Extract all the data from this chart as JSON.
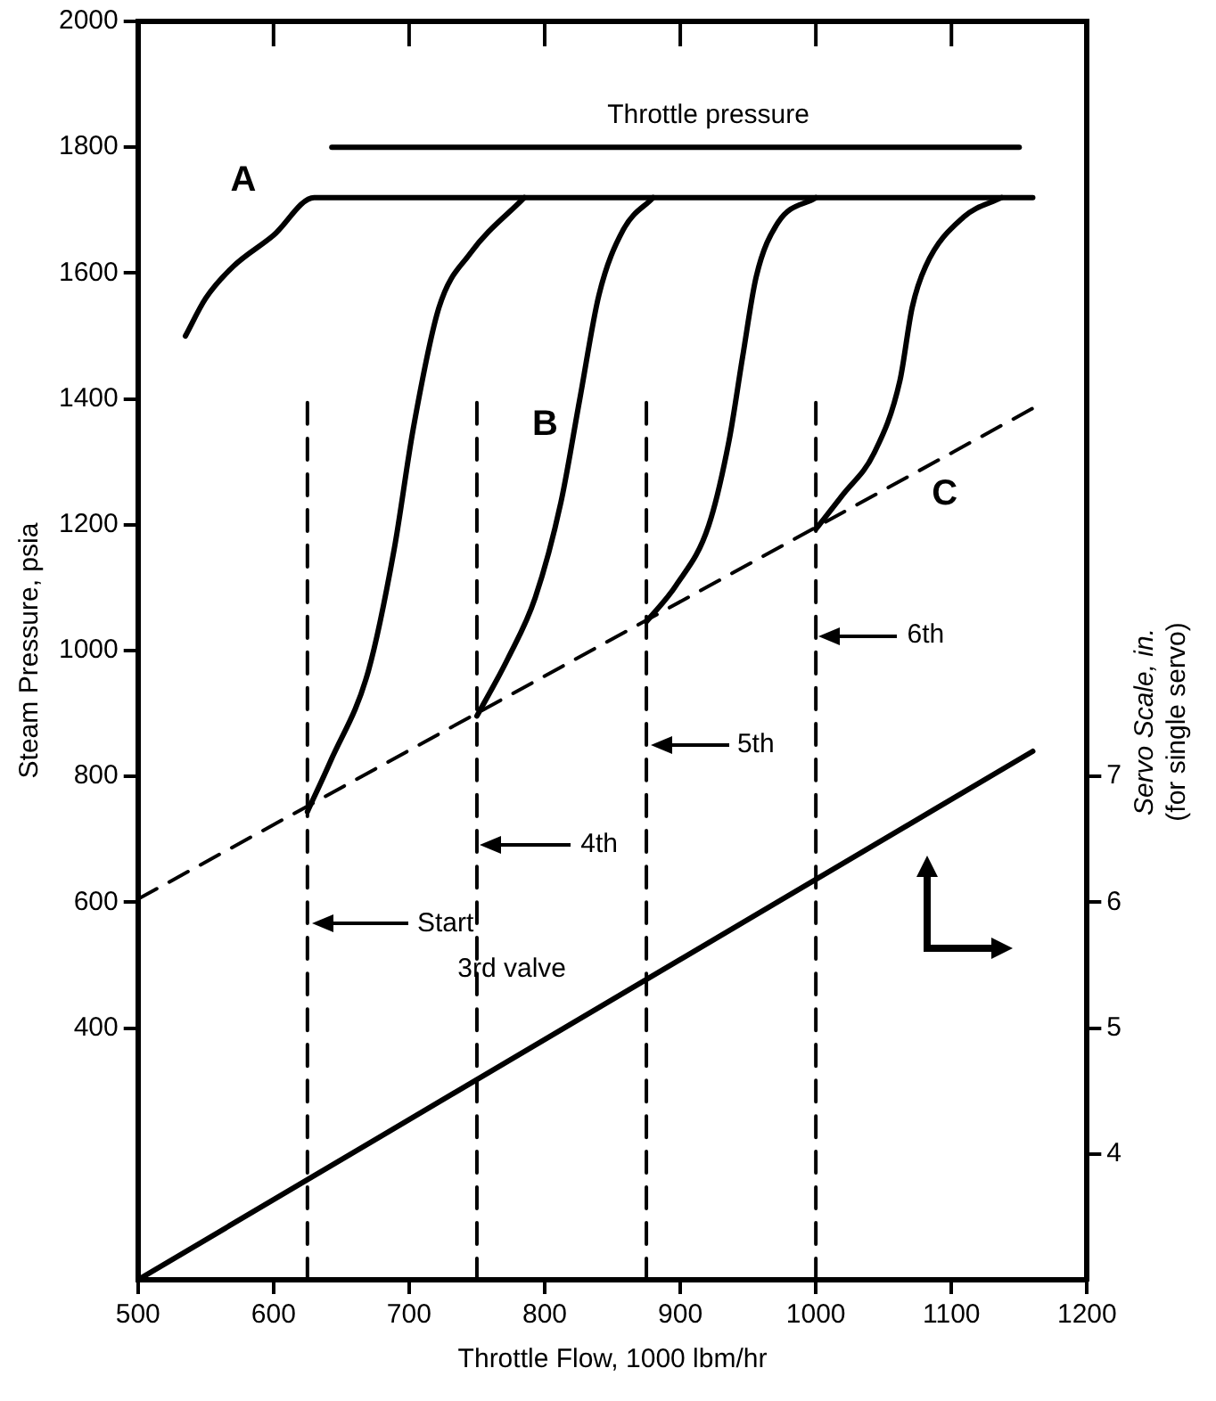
{
  "chart_data": {
    "type": "line",
    "xlabel": "Throttle Flow, 1000 lbm/hr",
    "ylabel": "Steam Pressure, psia",
    "y2label": "Servo Scale, in.\n(for single servo)",
    "xlim": [
      500,
      1200
    ],
    "xticks": [
      500,
      600,
      700,
      800,
      900,
      1000,
      1100,
      1200
    ],
    "ylim": [
      0,
      2000
    ],
    "yticks": [
      400,
      600,
      800,
      1000,
      1200,
      1400,
      1600,
      1800,
      2000
    ],
    "y2lim": [
      3,
      13
    ],
    "y2ticks": [
      4,
      5,
      6,
      7
    ],
    "grid": false,
    "legend": false,
    "marker": "none",
    "series": [
      {
        "color": "#000000",
        "line_style": "solid",
        "x": [
          643,
          1150
        ],
        "values": [
          1800,
          1800
        ]
      },
      {
        "color": "#000000",
        "line_style": "solid",
        "x": [
          535,
          550,
          570,
          600,
          630,
          1160
        ],
        "values": [
          1500,
          1560,
          1610,
          1660,
          1720,
          1720
        ]
      },
      {
        "color": "#000000",
        "line_style": "solid",
        "x": [
          625,
          642,
          670,
          689,
          703,
          722,
          745,
          785
        ],
        "values": [
          744,
          824,
          968,
          1161,
          1352,
          1545,
          1631,
          1720
        ]
      },
      {
        "color": "#000000",
        "line_style": "solid",
        "x": [
          750,
          773,
          793,
          812,
          826,
          840,
          858,
          880
        ],
        "values": [
          896,
          988,
          1084,
          1236,
          1401,
          1565,
          1669,
          1720
        ]
      },
      {
        "color": "#000000",
        "line_style": "solid",
        "x": [
          875,
          897,
          921,
          936,
          946,
          956,
          972,
          1000
        ],
        "values": [
          1046,
          1104,
          1199,
          1334,
          1467,
          1594,
          1680,
          1720
        ]
      },
      {
        "color": "#000000",
        "line_style": "solid",
        "x": [
          1000,
          1020,
          1043,
          1062,
          1071,
          1081,
          1109,
          1137
        ],
        "values": [
          1193,
          1248,
          1314,
          1429,
          1545,
          1611,
          1689,
          1720
        ]
      },
      {
        "color": "#000000",
        "line_style": "dashed",
        "x": [
          500,
          1160
        ],
        "values": [
          605,
          1385
        ]
      },
      {
        "color": "#000000",
        "line_style": "dashed",
        "x": [
          625,
          625
        ],
        "values": [
          0,
          1400
        ]
      },
      {
        "color": "#000000",
        "line_style": "dashed",
        "x": [
          750,
          750
        ],
        "values": [
          0,
          1400
        ]
      },
      {
        "color": "#000000",
        "line_style": "dashed",
        "x": [
          875,
          875
        ],
        "values": [
          0,
          1400
        ]
      },
      {
        "color": "#000000",
        "line_style": "dashed",
        "x": [
          1000,
          1000
        ],
        "values": [
          0,
          1400
        ]
      },
      {
        "color": "#000000",
        "line_style": "solid",
        "axis": "y2",
        "x": [
          500,
          1160
        ],
        "values": [
          3.0,
          7.2
        ]
      }
    ],
    "annotations": [
      "Throttle pressure",
      "A",
      "B",
      "C",
      "6th",
      "5th",
      "4th",
      "Start",
      "3rd valve"
    ]
  }
}
